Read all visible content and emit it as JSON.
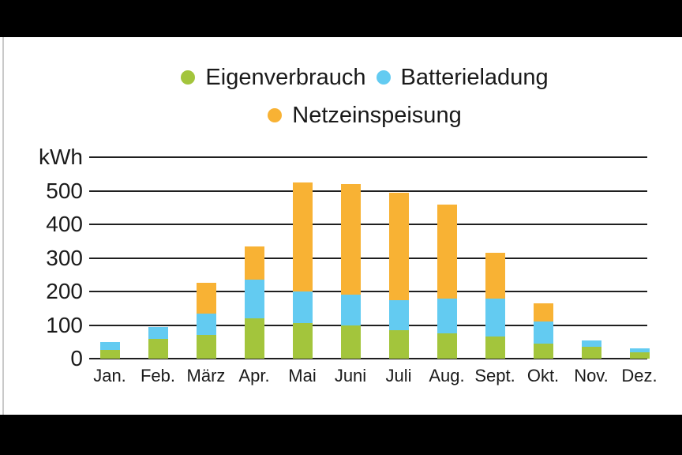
{
  "frame": {
    "background_color": "#000000",
    "panel_color": "#ffffff",
    "edge_line_color": "#c9c9c9",
    "text_color": "#1a1a1a",
    "gridline_color": "#1f1f1f"
  },
  "legend": {
    "position": "top",
    "items": [
      {
        "label": "Eigenverbrauch",
        "color": "#a3c53c",
        "row": 1
      },
      {
        "label": "Batterieladung",
        "color": "#63cbf1",
        "row": 1
      },
      {
        "label": "Netzeinspeisung",
        "color": "#f8b234",
        "row": 2
      }
    ]
  },
  "chart_data": {
    "type": "bar",
    "stacked": true,
    "title": "",
    "ylabel": "kWh",
    "xlabel": "",
    "ylim": [
      0,
      600
    ],
    "yticks": [
      0,
      100,
      200,
      300,
      400,
      500
    ],
    "gridline_values": [
      0,
      100,
      200,
      300,
      400,
      500,
      600
    ],
    "grid": true,
    "legend_position": "top",
    "categories": [
      "Jan.",
      "Feb.",
      "März",
      "Apr.",
      "Mai",
      "Juni",
      "Juli",
      "Aug.",
      "Sept.",
      "Okt.",
      "Nov.",
      "Dez."
    ],
    "series": [
      {
        "name": "Eigenverbrauch",
        "color": "#a3c53c",
        "values": [
          25,
          60,
          70,
          120,
          105,
          100,
          85,
          75,
          65,
          45,
          35,
          20
        ]
      },
      {
        "name": "Batterieladung",
        "color": "#63cbf1",
        "values": [
          25,
          35,
          65,
          115,
          95,
          90,
          90,
          105,
          115,
          65,
          20,
          10
        ]
      },
      {
        "name": "Netzeinspeisung",
        "color": "#f8b234",
        "values": [
          0,
          0,
          90,
          100,
          325,
          330,
          320,
          280,
          135,
          55,
          0,
          0
        ]
      }
    ],
    "totals": [
      50,
      95,
      225,
      335,
      525,
      520,
      495,
      460,
      315,
      165,
      55,
      30
    ]
  }
}
